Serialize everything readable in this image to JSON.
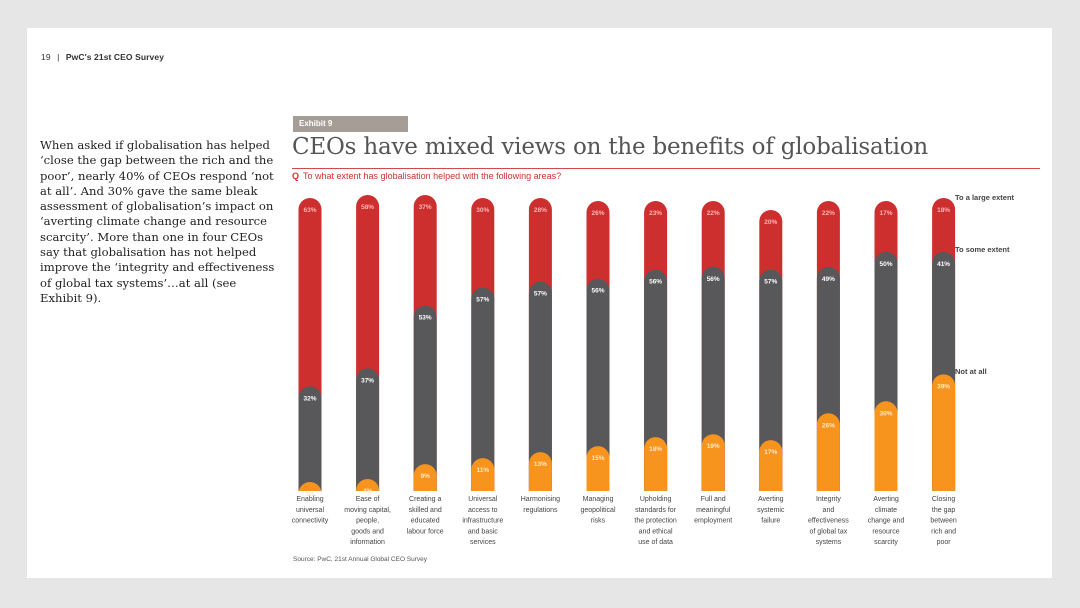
{
  "header": {
    "page_number": "19",
    "separator": "|",
    "publication": "PwC's 21st CEO Survey"
  },
  "body_text": "When asked if globalisation has helped ‘close the gap between the rich and the poor’, nearly 40% of CEOs respond ‘not at all’. And 30% gave the same bleak assessment of globalisation’s impact on ‘averting climate change and resource scarcity’. More than one in four CEOs say that globalisation has not helped improve the ‘integrity and effectiveness of global tax systems’…at all (see Exhibit 9).",
  "exhibit": {
    "label": "Exhibit 9"
  },
  "question": {
    "marker": "Q",
    "text": "To what extent has globalisation helped with the following areas?"
  },
  "source": "Source: PwC, 21st Annual Global CEO Survey",
  "colors": {
    "large": "#cd2f2f",
    "some": "#58585a",
    "not": "#f7941e",
    "label_large": "#ffb3b3",
    "label_some": "#ffffff",
    "label_not": "#ffe8c8"
  },
  "chart_data": {
    "type": "bar",
    "title": "CEOs have mixed views on the benefits of globalisation",
    "categories": [
      [
        "Enabling",
        "universal",
        "connectivity"
      ],
      [
        "Ease of",
        "moving capital,",
        "people,",
        "goods and",
        "information"
      ],
      [
        "Creating a",
        "skilled and",
        "educated",
        "labour force"
      ],
      [
        "Universal",
        "access to",
        "infrastructure",
        "and basic",
        "services"
      ],
      [
        "Harmonising",
        "regulations"
      ],
      [
        "Managing",
        "geopolitical",
        "risks"
      ],
      [
        "Upholding",
        "standards for",
        "the protection",
        "and ethical",
        "use of data"
      ],
      [
        "Full and",
        "meaningful",
        "employment"
      ],
      [
        "Averting",
        "systemic",
        "failure"
      ],
      [
        "Integrity",
        "and",
        "effectiveness",
        "of global tax",
        "systems"
      ],
      [
        "Averting",
        "climate",
        "change and",
        "resource",
        "scarcity"
      ],
      [
        "Closing",
        "the gap",
        "between",
        "rich and",
        "poor"
      ]
    ],
    "series": [
      {
        "name": "Not at all",
        "values": [
          3,
          4,
          9,
          11,
          13,
          15,
          18,
          19,
          17,
          26,
          30,
          39
        ]
      },
      {
        "name": "To some extent",
        "values": [
          32,
          37,
          53,
          57,
          57,
          56,
          56,
          56,
          57,
          49,
          50,
          41
        ]
      },
      {
        "name": "To a large extent",
        "values": [
          63,
          58,
          37,
          30,
          28,
          26,
          23,
          22,
          20,
          22,
          17,
          18
        ]
      }
    ],
    "legend": [
      "To a large extent",
      "To some extent",
      "Not at all"
    ],
    "legend_placement": "right",
    "stacked": true,
    "ylim": [
      0,
      100
    ]
  }
}
